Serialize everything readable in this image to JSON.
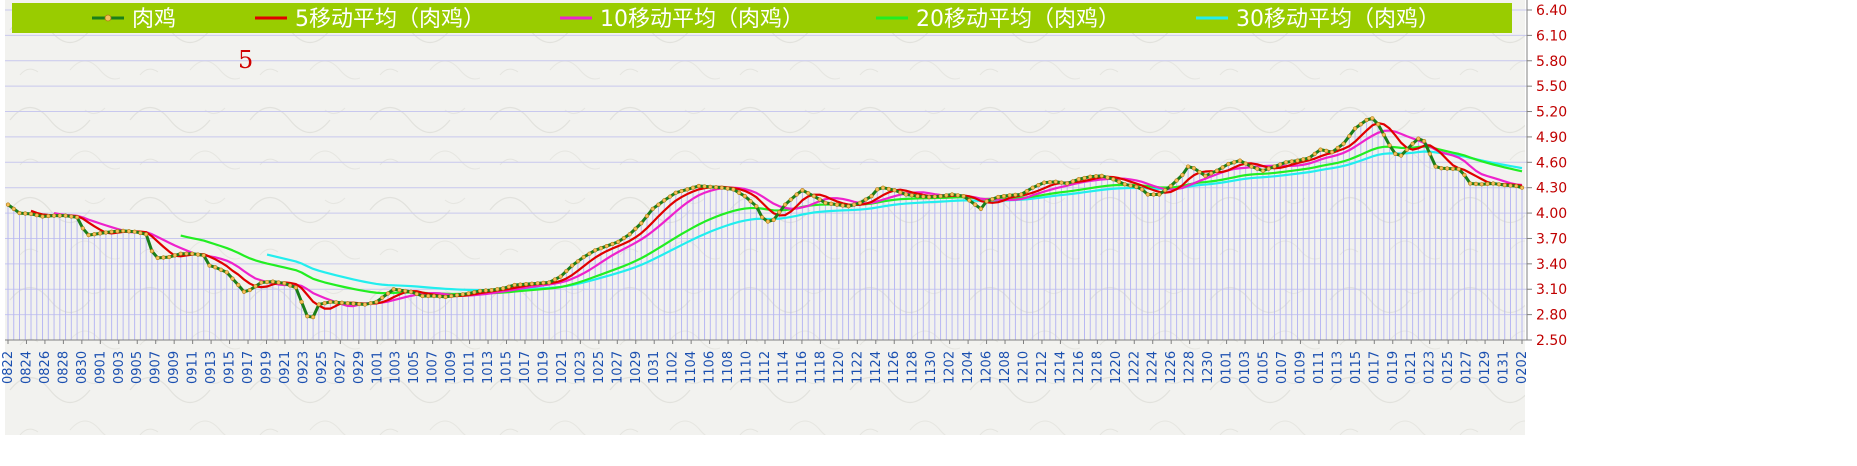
{
  "chart_data": {
    "type": "line",
    "annotation": "5",
    "ylim": [
      2.5,
      6.4
    ],
    "yticks": [
      "6.40",
      "6.10",
      "5.80",
      "5.50",
      "5.20",
      "4.90",
      "4.60",
      "4.30",
      "4.00",
      "3.70",
      "3.40",
      "3.10",
      "2.80",
      "2.50"
    ],
    "xtick_labels": [
      "0822",
      "0824",
      "0826",
      "0828",
      "0830",
      "0901",
      "0903",
      "0905",
      "0907",
      "0909",
      "0911",
      "0913",
      "0915",
      "0917",
      "0919",
      "0921",
      "0923",
      "0925",
      "0927",
      "0929",
      "1001",
      "1003",
      "1005",
      "1007",
      "1009",
      "1011",
      "1013",
      "1015",
      "1017",
      "1019",
      "1021",
      "1023",
      "1025",
      "1027",
      "1029",
      "1031",
      "1102",
      "1104",
      "1106",
      "1108",
      "1110",
      "1112",
      "1114",
      "1116",
      "1118",
      "1120",
      "1122",
      "1124",
      "1126",
      "1128",
      "1130",
      "1202",
      "1204",
      "1206",
      "1208",
      "1210",
      "1212",
      "1214",
      "1216",
      "1218",
      "1220",
      "1222",
      "1224",
      "1226",
      "1228",
      "1230",
      "0101",
      "0103",
      "0105",
      "0107",
      "0109",
      "0111",
      "0113",
      "0115",
      "0117",
      "0119",
      "0121",
      "0123",
      "0125",
      "0127",
      "0129",
      "0131",
      "0202"
    ],
    "colors": {
      "legend_bg": "#99cc00",
      "price": "#1a7f1a",
      "ma5": "#e00000",
      "ma10": "#ee22cc",
      "ma20": "#22ee22",
      "ma30": "#22eeee",
      "bars": "#b8b8f2",
      "grid": "#c8c8ee",
      "axis_text": "#c00000",
      "date_text": "#1a4fb0"
    },
    "series": [
      {
        "name": "肉鸡",
        "key": "price"
      },
      {
        "name": "5移动平均（肉鸡）",
        "key": "ma5"
      },
      {
        "name": "10移动平均（肉鸡）",
        "key": "ma10"
      },
      {
        "name": "20移动平均（肉鸡）",
        "key": "ma20"
      },
      {
        "name": "30移动平均（肉鸡）",
        "key": "ma30"
      }
    ],
    "price_keypoints": [
      [
        0,
        4.1
      ],
      [
        2,
        4.0
      ],
      [
        4,
        3.99
      ],
      [
        6,
        3.96
      ],
      [
        8,
        3.97
      ],
      [
        10,
        3.97
      ],
      [
        12,
        3.95
      ],
      [
        13,
        3.82
      ],
      [
        14,
        3.74
      ],
      [
        16,
        3.76
      ],
      [
        18,
        3.78
      ],
      [
        20,
        3.79
      ],
      [
        22,
        3.78
      ],
      [
        24,
        3.75
      ],
      [
        25,
        3.55
      ],
      [
        26,
        3.47
      ],
      [
        28,
        3.48
      ],
      [
        30,
        3.52
      ],
      [
        32,
        3.52
      ],
      [
        34,
        3.5
      ],
      [
        35,
        3.38
      ],
      [
        36,
        3.36
      ],
      [
        38,
        3.3
      ],
      [
        40,
        3.15
      ],
      [
        41,
        3.07
      ],
      [
        42,
        3.09
      ],
      [
        44,
        3.18
      ],
      [
        46,
        3.19
      ],
      [
        48,
        3.17
      ],
      [
        50,
        3.12
      ],
      [
        51,
        2.95
      ],
      [
        52,
        2.78
      ],
      [
        53,
        2.77
      ],
      [
        54,
        2.92
      ],
      [
        56,
        2.95
      ],
      [
        58,
        2.94
      ],
      [
        60,
        2.93
      ],
      [
        62,
        2.92
      ],
      [
        64,
        2.95
      ],
      [
        66,
        3.05
      ],
      [
        67,
        3.1
      ],
      [
        68,
        3.09
      ],
      [
        70,
        3.07
      ],
      [
        72,
        3.02
      ],
      [
        74,
        3.02
      ],
      [
        76,
        3.01
      ],
      [
        78,
        3.03
      ],
      [
        80,
        3.05
      ],
      [
        82,
        3.08
      ],
      [
        84,
        3.09
      ],
      [
        86,
        3.11
      ],
      [
        88,
        3.15
      ],
      [
        90,
        3.16
      ],
      [
        92,
        3.17
      ],
      [
        94,
        3.18
      ],
      [
        96,
        3.25
      ],
      [
        98,
        3.38
      ],
      [
        100,
        3.48
      ],
      [
        102,
        3.56
      ],
      [
        104,
        3.61
      ],
      [
        106,
        3.66
      ],
      [
        108,
        3.75
      ],
      [
        110,
        3.88
      ],
      [
        112,
        4.05
      ],
      [
        114,
        4.15
      ],
      [
        116,
        4.24
      ],
      [
        118,
        4.28
      ],
      [
        120,
        4.32
      ],
      [
        122,
        4.31
      ],
      [
        124,
        4.3
      ],
      [
        126,
        4.28
      ],
      [
        128,
        4.2
      ],
      [
        130,
        4.08
      ],
      [
        131,
        3.95
      ],
      [
        132,
        3.9
      ],
      [
        133,
        3.92
      ],
      [
        135,
        4.1
      ],
      [
        137,
        4.22
      ],
      [
        138,
        4.27
      ],
      [
        140,
        4.2
      ],
      [
        142,
        4.12
      ],
      [
        144,
        4.1
      ],
      [
        146,
        4.08
      ],
      [
        148,
        4.12
      ],
      [
        150,
        4.2
      ],
      [
        151,
        4.28
      ],
      [
        152,
        4.3
      ],
      [
        154,
        4.27
      ],
      [
        156,
        4.22
      ],
      [
        158,
        4.2
      ],
      [
        160,
        4.19
      ],
      [
        162,
        4.2
      ],
      [
        164,
        4.22
      ],
      [
        166,
        4.2
      ],
      [
        168,
        4.1
      ],
      [
        169,
        4.05
      ],
      [
        170,
        4.14
      ],
      [
        172,
        4.19
      ],
      [
        174,
        4.21
      ],
      [
        176,
        4.22
      ],
      [
        178,
        4.3
      ],
      [
        180,
        4.36
      ],
      [
        182,
        4.37
      ],
      [
        184,
        4.35
      ],
      [
        186,
        4.4
      ],
      [
        188,
        4.43
      ],
      [
        190,
        4.44
      ],
      [
        192,
        4.4
      ],
      [
        194,
        4.34
      ],
      [
        196,
        4.31
      ],
      [
        197,
        4.28
      ],
      [
        198,
        4.22
      ],
      [
        200,
        4.22
      ],
      [
        202,
        4.32
      ],
      [
        204,
        4.45
      ],
      [
        205,
        4.55
      ],
      [
        206,
        4.53
      ],
      [
        208,
        4.44
      ],
      [
        210,
        4.5
      ],
      [
        212,
        4.58
      ],
      [
        214,
        4.62
      ],
      [
        216,
        4.55
      ],
      [
        218,
        4.5
      ],
      [
        220,
        4.55
      ],
      [
        222,
        4.6
      ],
      [
        224,
        4.62
      ],
      [
        226,
        4.65
      ],
      [
        228,
        4.75
      ],
      [
        230,
        4.72
      ],
      [
        232,
        4.82
      ],
      [
        234,
        5.0
      ],
      [
        236,
        5.1
      ],
      [
        237,
        5.12
      ],
      [
        238,
        5.05
      ],
      [
        240,
        4.8
      ],
      [
        241,
        4.7
      ],
      [
        242,
        4.68
      ],
      [
        244,
        4.82
      ],
      [
        245,
        4.88
      ],
      [
        246,
        4.85
      ],
      [
        247,
        4.7
      ],
      [
        248,
        4.55
      ],
      [
        249,
        4.53
      ],
      [
        252,
        4.52
      ],
      [
        253,
        4.45
      ],
      [
        254,
        4.35
      ],
      [
        256,
        4.34
      ],
      [
        258,
        4.35
      ],
      [
        260,
        4.33
      ],
      [
        262,
        4.32
      ],
      [
        263,
        4.3
      ]
    ]
  }
}
